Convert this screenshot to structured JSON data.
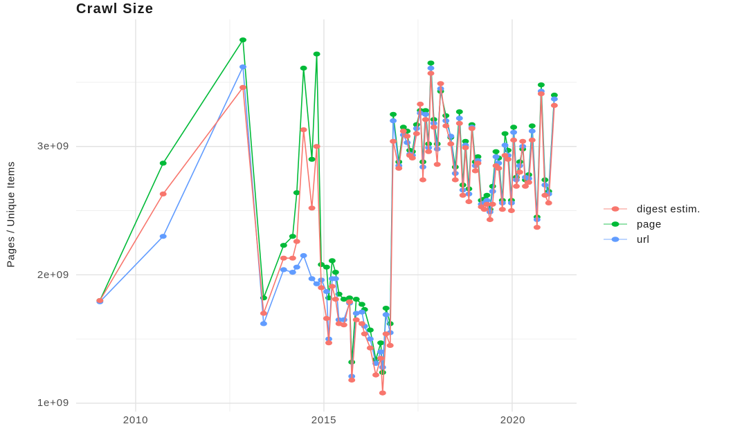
{
  "chart_data": {
    "type": "line",
    "title": "Crawl Size",
    "ylabel": "Pages / Unique Items",
    "xlabel": "",
    "values_unit": "1e9 (axis shows 1e+09 .. 3e+09)",
    "grid": true,
    "legend_position": "right",
    "x_tick_labels": [
      "2010",
      "2015",
      "2020"
    ],
    "x_tick_values": [
      2010,
      2015,
      2020
    ],
    "x_minor_tick_values": [
      2012.5,
      2017.5
    ],
    "y_tick_labels": [
      "1e+09",
      "2e+09",
      "3e+09"
    ],
    "y_tick_values": [
      1,
      2,
      3
    ],
    "y_minor_tick_values": [
      1.5,
      2.5,
      3.5
    ],
    "xlim": [
      2008.42,
      2021.71
    ],
    "ylim": [
      0.935,
      3.99
    ],
    "x": [
      2009.05,
      2010.73,
      2012.85,
      2013.4,
      2013.93,
      2014.17,
      2014.28,
      2014.46,
      2014.68,
      2014.81,
      2014.93,
      2015.07,
      2015.13,
      2015.22,
      2015.31,
      2015.4,
      2015.53,
      2015.68,
      2015.74,
      2015.86,
      2016.01,
      2016.08,
      2016.23,
      2016.38,
      2016.51,
      2016.56,
      2016.65,
      2016.76,
      2016.84,
      2016.99,
      2017.11,
      2017.21,
      2017.28,
      2017.35,
      2017.46,
      2017.56,
      2017.63,
      2017.7,
      2017.78,
      2017.84,
      2017.92,
      2018.01,
      2018.1,
      2018.24,
      2018.37,
      2018.49,
      2018.6,
      2018.69,
      2018.76,
      2018.85,
      2018.93,
      2019.02,
      2019.09,
      2019.18,
      2019.26,
      2019.33,
      2019.41,
      2019.48,
      2019.57,
      2019.64,
      2019.74,
      2019.81,
      2019.89,
      2019.98,
      2020.04,
      2020.11,
      2020.2,
      2020.28,
      2020.35,
      2020.44,
      2020.53,
      2020.66,
      2020.77,
      2020.87,
      2020.97,
      2021.12
    ],
    "series": [
      {
        "name": "digest estim.",
        "color": "#F8766D",
        "values": [
          1.8,
          2.63,
          3.46,
          1.7,
          2.13,
          2.13,
          2.26,
          3.13,
          2.52,
          3.0,
          1.9,
          1.66,
          1.47,
          1.91,
          1.81,
          1.62,
          1.61,
          1.79,
          1.18,
          1.65,
          1.62,
          1.54,
          1.43,
          1.22,
          1.35,
          1.08,
          1.54,
          1.45,
          3.04,
          2.83,
          3.12,
          3.08,
          2.93,
          2.91,
          3.1,
          3.33,
          2.74,
          3.21,
          2.96,
          3.57,
          3.15,
          2.86,
          3.49,
          3.16,
          3.02,
          2.74,
          3.18,
          2.62,
          2.99,
          2.57,
          3.14,
          2.81,
          2.87,
          2.53,
          2.51,
          2.55,
          2.43,
          2.55,
          2.85,
          2.83,
          2.51,
          2.93,
          2.9,
          2.5,
          3.05,
          2.69,
          2.8,
          3.04,
          2.69,
          2.72,
          3.05,
          2.37,
          3.41,
          2.62,
          2.56,
          3.32
        ]
      },
      {
        "name": "page",
        "color": "#00BA38",
        "values": [
          1.8,
          2.87,
          3.83,
          1.82,
          2.23,
          2.3,
          2.64,
          3.61,
          2.9,
          3.72,
          2.08,
          2.06,
          1.82,
          2.11,
          2.02,
          1.85,
          1.81,
          1.82,
          1.32,
          1.81,
          1.77,
          1.73,
          1.57,
          1.34,
          1.47,
          1.24,
          1.74,
          1.62,
          3.25,
          2.88,
          3.15,
          3.12,
          2.97,
          2.96,
          3.17,
          3.28,
          2.88,
          3.28,
          3.02,
          3.65,
          3.21,
          3.02,
          3.43,
          3.24,
          3.07,
          2.84,
          3.27,
          2.7,
          3.04,
          2.67,
          3.17,
          2.88,
          2.92,
          2.58,
          2.59,
          2.62,
          2.51,
          2.69,
          2.96,
          2.91,
          2.58,
          3.1,
          2.97,
          2.58,
          3.15,
          2.76,
          2.88,
          2.98,
          2.74,
          2.78,
          3.16,
          2.45,
          3.48,
          2.74,
          2.65,
          3.4
        ]
      },
      {
        "name": "url",
        "color": "#619CFF",
        "values": [
          1.79,
          2.3,
          3.62,
          1.62,
          2.04,
          2.02,
          2.06,
          2.15,
          1.97,
          1.93,
          1.96,
          1.87,
          1.5,
          1.97,
          1.97,
          1.65,
          1.65,
          1.78,
          1.21,
          1.7,
          1.71,
          1.6,
          1.5,
          1.31,
          1.4,
          1.28,
          1.69,
          1.55,
          3.2,
          2.85,
          3.09,
          3.03,
          2.94,
          2.93,
          3.14,
          3.26,
          2.84,
          3.25,
          2.99,
          3.61,
          3.18,
          2.98,
          3.45,
          3.2,
          3.08,
          2.79,
          3.22,
          2.66,
          3.01,
          2.63,
          3.15,
          2.85,
          2.89,
          2.55,
          2.56,
          2.58,
          2.49,
          2.65,
          2.92,
          2.87,
          2.56,
          3.01,
          2.93,
          2.56,
          3.11,
          2.74,
          2.85,
          3.0,
          2.76,
          2.75,
          3.12,
          2.43,
          3.43,
          2.7,
          2.63,
          3.37
        ]
      }
    ],
    "style": {
      "major_grid_color": "#E2E2E2",
      "minor_grid_color": "#EFEFEF",
      "background": "#FFFFFF"
    }
  }
}
